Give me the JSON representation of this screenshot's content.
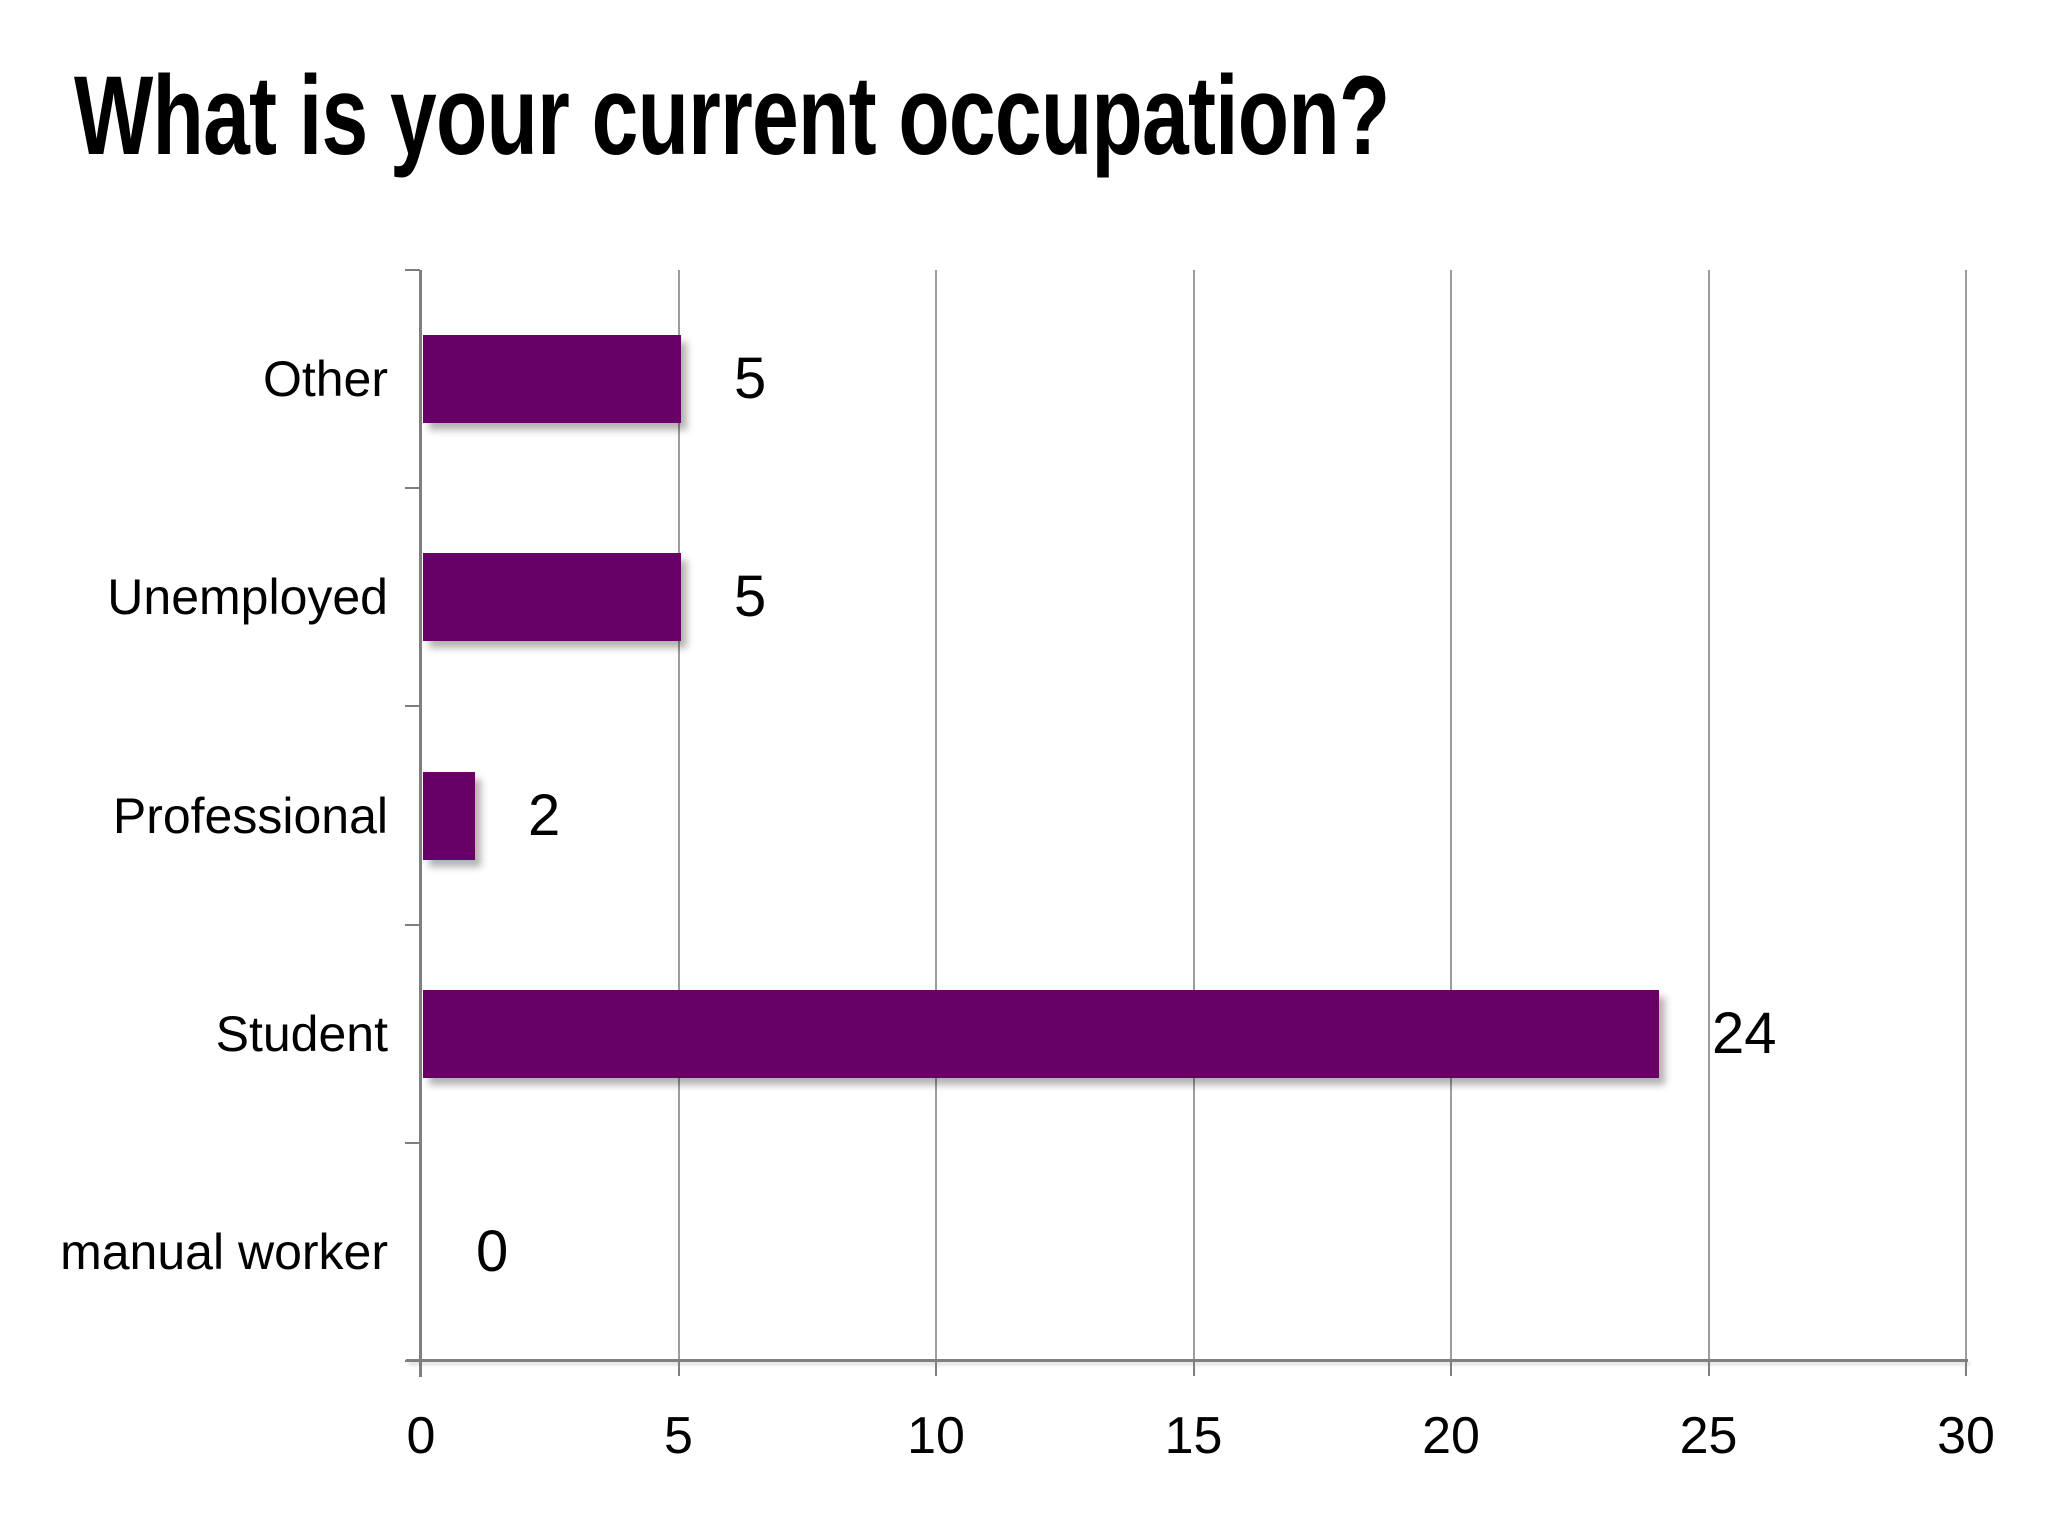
{
  "slide": {
    "title": "What is your current occupation?"
  },
  "chart_data": {
    "type": "bar",
    "orientation": "horizontal",
    "title": "What is your current occupation?",
    "categories": [
      "Other",
      "Unemployed",
      "Professional",
      "Student",
      "manual worker"
    ],
    "values": [
      5,
      5,
      2,
      24,
      0
    ],
    "data_labels": [
      "5",
      "5",
      "2",
      "24",
      "0"
    ],
    "bar_lengths_as_drawn": [
      5,
      5,
      1,
      24,
      0
    ],
    "xlabel": "",
    "ylabel": "",
    "xlim": [
      0,
      30
    ],
    "x_ticks": [
      0,
      5,
      10,
      15,
      20,
      25,
      30
    ],
    "grid": true,
    "legend": false,
    "bar_color": "#670168",
    "axis_color": "#7f7f7f",
    "gridline_color": "#9d9d9d",
    "text_color": "#000000",
    "background_color": "#ffffff"
  }
}
